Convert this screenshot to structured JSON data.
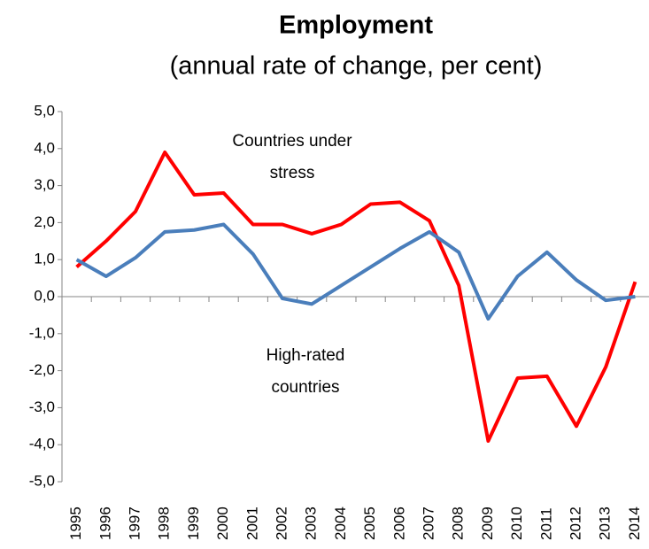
{
  "chart_data": {
    "type": "line",
    "title": "Employment",
    "subtitle": "(annual rate of change, per cent)",
    "categories": [
      "1995",
      "1996",
      "1997",
      "1998",
      "1999",
      "2000",
      "2001",
      "2002",
      "2003",
      "2004",
      "2005",
      "2006",
      "2007",
      "2008",
      "2009",
      "2010",
      "2011",
      "2012",
      "2013",
      "2014"
    ],
    "series": [
      {
        "color": "#ff0000",
        "values": [
          0.8,
          1.5,
          2.3,
          3.9,
          2.75,
          2.8,
          1.95,
          1.95,
          1.7,
          1.95,
          2.5,
          2.55,
          2.05,
          0.3,
          -3.9,
          -2.2,
          -2.15,
          -3.5,
          -1.9,
          0.4
        ]
      },
      {
        "color": "#4a7ebb",
        "values": [
          1.0,
          0.55,
          1.05,
          1.75,
          1.8,
          1.95,
          1.15,
          -0.05,
          -0.2,
          0.3,
          0.8,
          1.3,
          1.75,
          1.2,
          -0.6,
          0.55,
          1.2,
          0.45,
          -0.1,
          0.0
        ]
      }
    ],
    "annotations": [
      [
        "Countries under",
        "stress"
      ],
      [
        "High-rated",
        "countries"
      ]
    ],
    "ylim": [
      -5,
      5
    ],
    "yticks": [
      {
        "value": -5,
        "label": "-5,0"
      },
      {
        "value": -4,
        "label": "-4,0"
      },
      {
        "value": -3,
        "label": "-3,0"
      },
      {
        "value": -2,
        "label": "-2,0"
      },
      {
        "value": -1,
        "label": "-1,0"
      },
      {
        "value": 0,
        "label": "0,0"
      },
      {
        "value": 1,
        "label": "1,0"
      },
      {
        "value": 2,
        "label": "2,0"
      },
      {
        "value": 3,
        "label": "3,0"
      },
      {
        "value": 4,
        "label": "4,0"
      },
      {
        "value": 5,
        "label": "5,0"
      }
    ],
    "grid": false
  }
}
